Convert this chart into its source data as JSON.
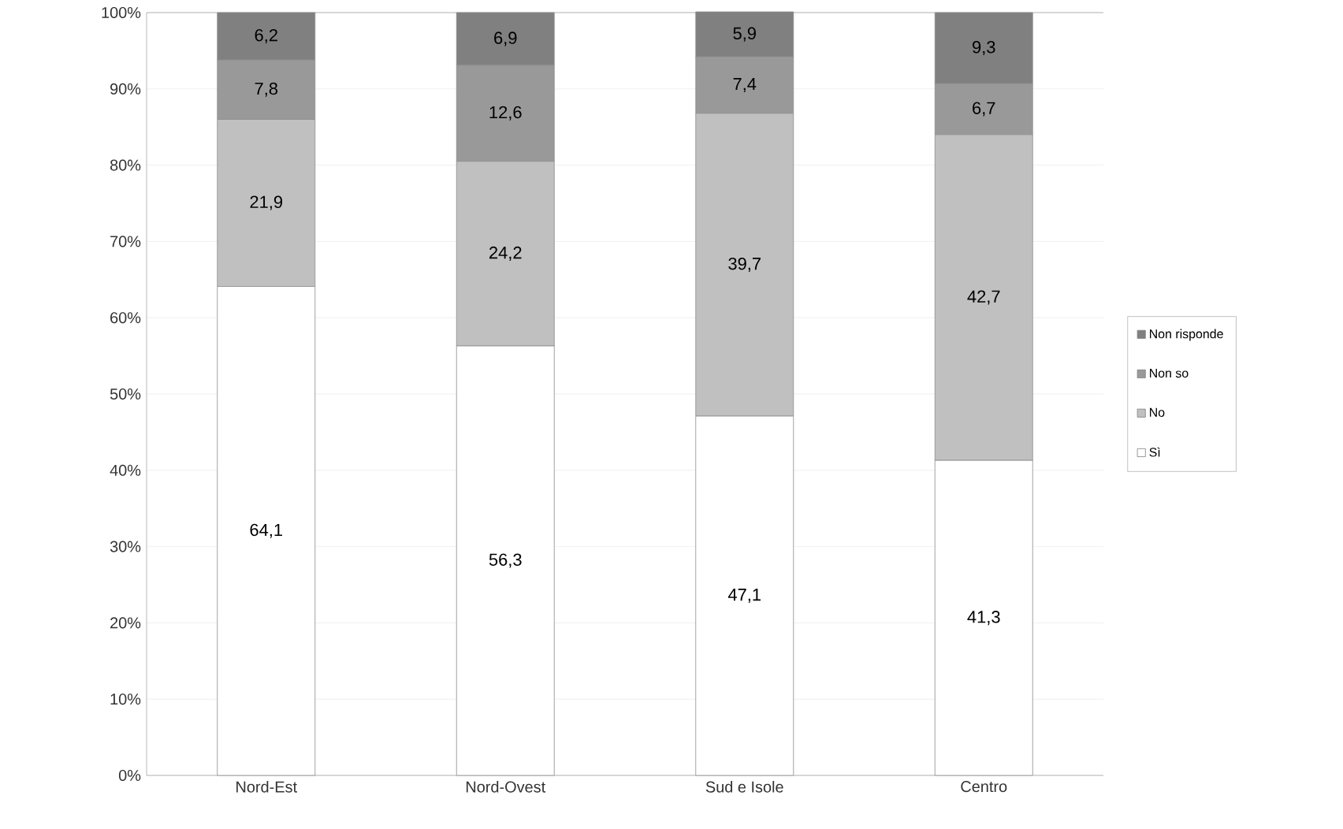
{
  "chart_data": {
    "type": "bar",
    "stacked": true,
    "categories": [
      "Nord-Est",
      "Nord-Ovest",
      "Sud e Isole",
      "Centro"
    ],
    "series": [
      {
        "name": "Sì",
        "color": "#ffffff",
        "values": [
          64.1,
          56.3,
          47.1,
          41.3
        ],
        "value_labels": [
          "64,1",
          "56,3",
          "47,1",
          "41,3"
        ]
      },
      {
        "name": "No",
        "color": "#c0c0c0",
        "values": [
          21.9,
          24.2,
          39.7,
          42.7
        ],
        "value_labels": [
          "21,9",
          "24,2",
          "39,7",
          "42,7"
        ]
      },
      {
        "name": "Non so",
        "color": "#999999",
        "values": [
          7.8,
          12.6,
          7.4,
          6.7
        ],
        "value_labels": [
          "7,8",
          "12,6",
          "7,4",
          "6,7"
        ]
      },
      {
        "name": "Non risponde",
        "color": "#808080",
        "values": [
          6.2,
          6.9,
          5.9,
          9.3
        ],
        "value_labels": [
          "6,2",
          "6,9",
          "5,9",
          "9,3"
        ]
      }
    ],
    "ylim": [
      0,
      100
    ],
    "yticks": [
      {
        "value": 0,
        "label": "0%"
      },
      {
        "value": 10,
        "label": "10%"
      },
      {
        "value": 20,
        "label": "20%"
      },
      {
        "value": 30,
        "label": "30%"
      },
      {
        "value": 40,
        "label": "40%"
      },
      {
        "value": 50,
        "label": "50%"
      },
      {
        "value": 60,
        "label": "60%"
      },
      {
        "value": 70,
        "label": "70%"
      },
      {
        "value": 80,
        "label": "80%"
      },
      {
        "value": 90,
        "label": "90%"
      },
      {
        "value": 100,
        "label": "100%"
      }
    ],
    "grid": "y",
    "legend": "right"
  }
}
